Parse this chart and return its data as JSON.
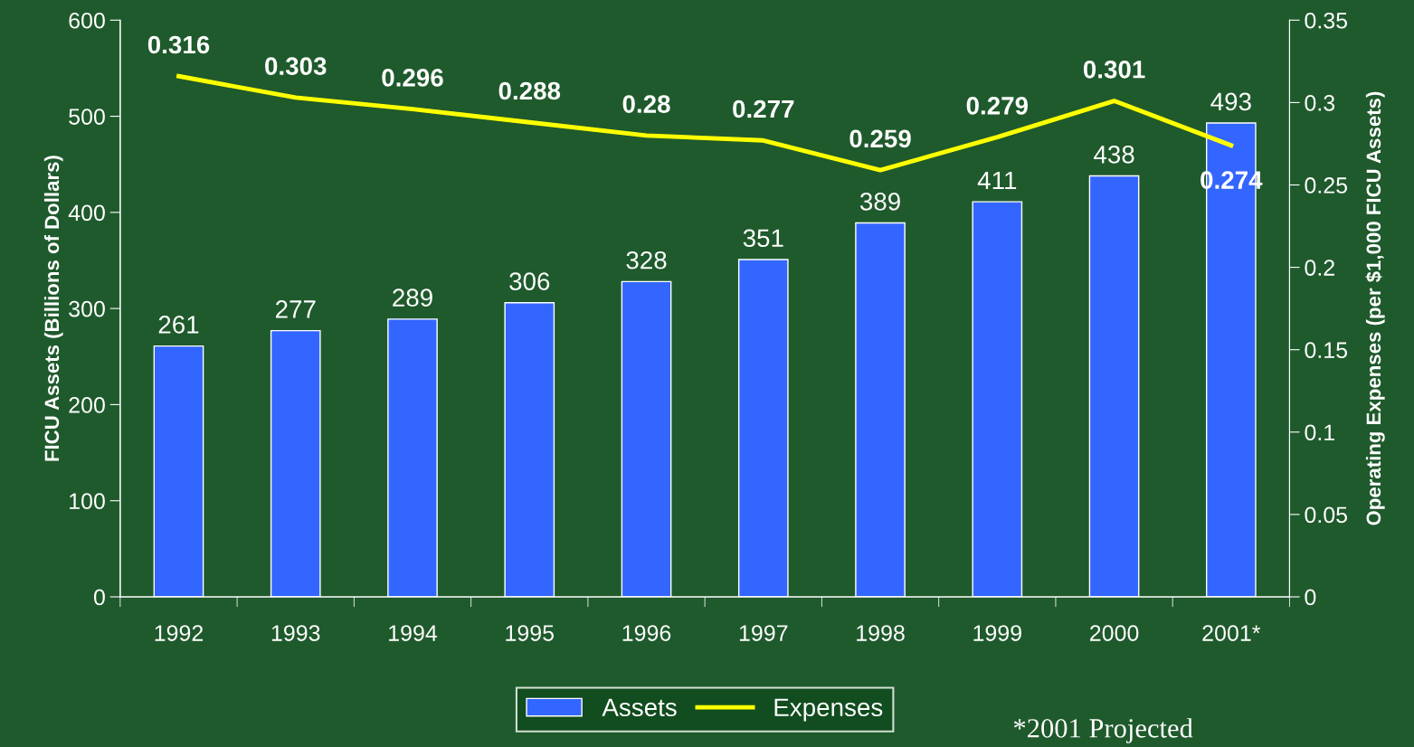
{
  "chart_data": {
    "type": "bar",
    "categories": [
      "1992",
      "1993",
      "1994",
      "1995",
      "1996",
      "1997",
      "1998",
      "1999",
      "2000",
      "2001*"
    ],
    "series": [
      {
        "name": "Assets",
        "color": "#3366ff",
        "values": [
          261,
          277,
          289,
          306,
          328,
          351,
          389,
          411,
          438,
          493
        ]
      },
      {
        "name": "Expenses",
        "type": "line",
        "axis": "y2",
        "color": "#ffff00",
        "values": [
          0.316,
          0.303,
          0.296,
          0.288,
          0.28,
          0.277,
          0.259,
          0.279,
          0.301,
          0.274
        ]
      }
    ],
    "ylabel": "FICU Assets (Billions of Dollars)",
    "y2label": "Operating Expenses (per $1,000 FICU Assets)",
    "ylim": [
      0,
      600
    ],
    "yticks": [
      0,
      100,
      200,
      300,
      400,
      500,
      600
    ],
    "y2lim": [
      0,
      0.35
    ],
    "y2ticks": [
      0,
      0.05,
      0.1,
      0.15,
      0.2,
      0.25,
      0.3,
      0.35
    ],
    "data_labels": true,
    "grid": false,
    "legend": "bottom",
    "marker": "none",
    "line_style": "solid",
    "annotations": [
      "*2001 Projected"
    ]
  }
}
